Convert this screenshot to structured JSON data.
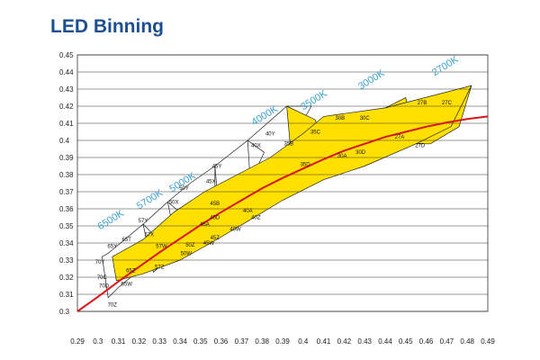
{
  "title": "LED Binning",
  "chart_data": {
    "type": "line",
    "title": "LED Binning",
    "xlabel": "",
    "ylabel": "",
    "xlim": [
      0.29,
      0.49
    ],
    "ylim": [
      0.3,
      0.45
    ],
    "x_ticks": [
      "0.29",
      "0.3",
      "0.31",
      "0.32",
      "0.33",
      "0.34",
      "0.35",
      "0.36",
      "0.37",
      "0.38",
      "0.39",
      "0.4",
      "0.41",
      "0.42",
      "0.43",
      "0.44",
      "0.45",
      "0.46",
      "0.47",
      "0.48",
      "0.49"
    ],
    "y_ticks": [
      "0.3",
      "0.31",
      "0.32",
      "0.33",
      "0.34",
      "0.35",
      "0.36",
      "0.37",
      "0.38",
      "0.39",
      "0.4",
      "0.41",
      "0.42",
      "0.43",
      "0.44",
      "0.45"
    ],
    "grid": true,
    "colors": {
      "grid": "#333333",
      "locus": "#d9141b",
      "bin_fill": "#ffe000",
      "bin_stroke": "#222222",
      "cct_label": "#3aa0d0"
    },
    "series": [
      {
        "x": [
          0.29,
          0.3,
          0.31,
          0.32,
          0.33,
          0.34,
          0.35,
          0.36,
          0.37,
          0.38,
          0.39,
          0.4,
          0.41,
          0.42,
          0.43,
          0.44,
          0.45,
          0.46,
          0.47,
          0.48,
          0.49
        ],
        "y": [
          0.3,
          0.3085,
          0.3175,
          0.326,
          0.3345,
          0.3425,
          0.3505,
          0.358,
          0.365,
          0.372,
          0.378,
          0.3835,
          0.389,
          0.394,
          0.398,
          0.402,
          0.405,
          0.408,
          0.4105,
          0.4125,
          0.414
        ]
      }
    ],
    "regions": [
      {
        "name": "6500K",
        "fill": "none",
        "polygon": [
          [
            0.302,
            0.332
          ],
          [
            0.305,
            0.334
          ],
          [
            0.322,
            0.351
          ],
          [
            0.327,
            0.345
          ],
          [
            0.327,
            0.331
          ],
          [
            0.319,
            0.323
          ],
          [
            0.31,
            0.314
          ],
          [
            0.305,
            0.308
          ]
        ]
      },
      {
        "name": "5700K",
        "fill": "none",
        "polygon": [
          [
            0.322,
            0.351
          ],
          [
            0.334,
            0.364
          ],
          [
            0.341,
            0.357
          ],
          [
            0.339,
            0.345
          ],
          [
            0.337,
            0.333
          ],
          [
            0.327,
            0.323
          ]
        ]
      },
      {
        "name": "5000K",
        "fill": "none",
        "polygon": [
          [
            0.334,
            0.364
          ],
          [
            0.345,
            0.375
          ],
          [
            0.357,
            0.385
          ],
          [
            0.358,
            0.372
          ],
          [
            0.352,
            0.358
          ],
          [
            0.346,
            0.345
          ],
          [
            0.339,
            0.335
          ]
        ]
      },
      {
        "name": "4500K",
        "fill": "none",
        "polygon": [
          [
            0.357,
            0.385
          ],
          [
            0.373,
            0.4
          ],
          [
            0.381,
            0.393
          ],
          [
            0.376,
            0.38
          ],
          [
            0.37,
            0.367
          ],
          [
            0.364,
            0.355
          ],
          [
            0.357,
            0.343
          ]
        ]
      },
      {
        "name": "4000K",
        "fill": "none",
        "polygon": [
          [
            0.373,
            0.4
          ],
          [
            0.392,
            0.42
          ],
          [
            0.404,
            0.42
          ],
          [
            0.397,
            0.405
          ],
          [
            0.39,
            0.39
          ],
          [
            0.382,
            0.376
          ],
          [
            0.375,
            0.362
          ]
        ]
      },
      {
        "name": "3500K",
        "fill": "#ffe000",
        "polygon": [
          [
            0.392,
            0.42
          ],
          [
            0.395,
            0.38
          ],
          [
            0.41,
            0.39
          ],
          [
            0.406,
            0.412
          ]
        ]
      },
      {
        "name": "3000K",
        "fill": "#ffe000",
        "polygon": [
          [
            0.41,
            0.41
          ],
          [
            0.44,
            0.419
          ],
          [
            0.45,
            0.425
          ],
          [
            0.455,
            0.4
          ],
          [
            0.438,
            0.393
          ],
          [
            0.42,
            0.384
          ]
        ]
      },
      {
        "name": "2700K",
        "fill": "#ffe000",
        "polygon": [
          [
            0.455,
            0.421
          ],
          [
            0.47,
            0.428
          ],
          [
            0.482,
            0.432
          ],
          [
            0.476,
            0.408
          ],
          [
            0.462,
            0.398
          ],
          [
            0.448,
            0.398
          ]
        ]
      },
      {
        "name": "yellow-band",
        "fill": "#ffe000",
        "polygon": [
          [
            0.307,
            0.332
          ],
          [
            0.322,
            0.342
          ],
          [
            0.337,
            0.358
          ],
          [
            0.352,
            0.37
          ],
          [
            0.368,
            0.38
          ],
          [
            0.384,
            0.39
          ],
          [
            0.4,
            0.404
          ],
          [
            0.41,
            0.414
          ],
          [
            0.44,
            0.419
          ],
          [
            0.482,
            0.432
          ],
          [
            0.472,
            0.408
          ],
          [
            0.455,
            0.398
          ],
          [
            0.43,
            0.385
          ],
          [
            0.41,
            0.377
          ],
          [
            0.39,
            0.365
          ],
          [
            0.372,
            0.352
          ],
          [
            0.355,
            0.34
          ],
          [
            0.34,
            0.33
          ],
          [
            0.322,
            0.322
          ],
          [
            0.309,
            0.318
          ]
        ]
      }
    ],
    "cct_labels": [
      {
        "text": "6500K",
        "x": 0.307,
        "y": 0.352
      },
      {
        "text": "5700K",
        "x": 0.326,
        "y": 0.364
      },
      {
        "text": "5000K",
        "x": 0.342,
        "y": 0.374
      },
      {
        "text": "4000K",
        "x": 0.382,
        "y": 0.413
      },
      {
        "text": "3500K",
        "x": 0.406,
        "y": 0.422
      },
      {
        "text": "3000K",
        "x": 0.434,
        "y": 0.434
      },
      {
        "text": "2700K",
        "x": 0.47,
        "y": 0.442
      }
    ],
    "bin_labels": [
      {
        "text": "70Y",
        "x": 0.301,
        "y": 0.328
      },
      {
        "text": "70C",
        "x": 0.302,
        "y": 0.319
      },
      {
        "text": "70D",
        "x": 0.303,
        "y": 0.314
      },
      {
        "text": "70Z",
        "x": 0.307,
        "y": 0.303
      },
      {
        "text": "65Y",
        "x": 0.307,
        "y": 0.337
      },
      {
        "text": "65T",
        "x": 0.314,
        "y": 0.341
      },
      {
        "text": "65W",
        "x": 0.314,
        "y": 0.315
      },
      {
        "text": "65Z",
        "x": 0.316,
        "y": 0.323
      },
      {
        "text": "57Y",
        "x": 0.322,
        "y": 0.352
      },
      {
        "text": "57X",
        "x": 0.325,
        "y": 0.344
      },
      {
        "text": "57Z",
        "x": 0.33,
        "y": 0.325
      },
      {
        "text": "57W",
        "x": 0.331,
        "y": 0.337
      },
      {
        "text": "50X",
        "x": 0.337,
        "y": 0.363
      },
      {
        "text": "50Y",
        "x": 0.342,
        "y": 0.371
      },
      {
        "text": "50Z",
        "x": 0.345,
        "y": 0.338
      },
      {
        "text": "50W",
        "x": 0.343,
        "y": 0.333
      },
      {
        "text": "45X",
        "x": 0.355,
        "y": 0.375
      },
      {
        "text": "45Y",
        "x": 0.358,
        "y": 0.384
      },
      {
        "text": "45B",
        "x": 0.357,
        "y": 0.362
      },
      {
        "text": "45A",
        "x": 0.352,
        "y": 0.35
      },
      {
        "text": "45D",
        "x": 0.357,
        "y": 0.354
      },
      {
        "text": "45Z",
        "x": 0.357,
        "y": 0.342
      },
      {
        "text": "45W",
        "x": 0.354,
        "y": 0.339
      },
      {
        "text": "40W",
        "x": 0.367,
        "y": 0.347
      },
      {
        "text": "40A",
        "x": 0.373,
        "y": 0.358
      },
      {
        "text": "40Z",
        "x": 0.377,
        "y": 0.354
      },
      {
        "text": "40X",
        "x": 0.377,
        "y": 0.396
      },
      {
        "text": "40Y",
        "x": 0.384,
        "y": 0.403
      },
      {
        "text": "35B",
        "x": 0.393,
        "y": 0.397
      },
      {
        "text": "35C",
        "x": 0.406,
        "y": 0.404
      },
      {
        "text": "35D",
        "x": 0.401,
        "y": 0.385
      },
      {
        "text": "30B",
        "x": 0.418,
        "y": 0.412
      },
      {
        "text": "30C",
        "x": 0.43,
        "y": 0.412
      },
      {
        "text": "30A",
        "x": 0.419,
        "y": 0.39
      },
      {
        "text": "30D",
        "x": 0.428,
        "y": 0.392
      },
      {
        "text": "27B",
        "x": 0.458,
        "y": 0.421
      },
      {
        "text": "27C",
        "x": 0.47,
        "y": 0.421
      },
      {
        "text": "27A",
        "x": 0.447,
        "y": 0.401
      },
      {
        "text": "27D",
        "x": 0.457,
        "y": 0.396
      }
    ]
  }
}
